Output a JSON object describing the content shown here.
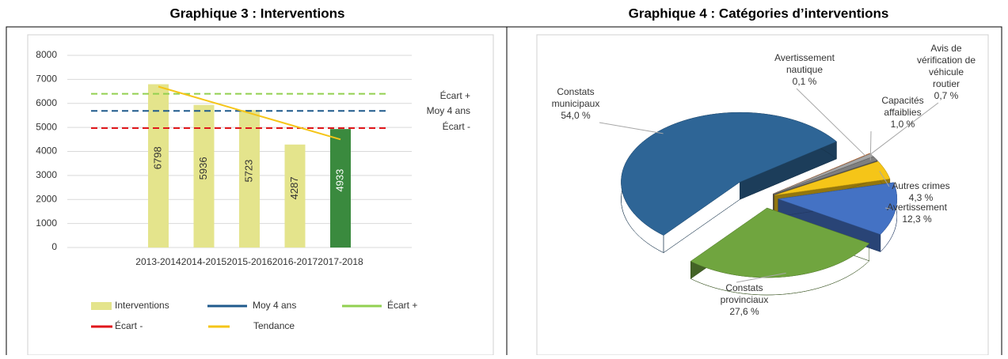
{
  "chart_data": [
    {
      "type": "bar",
      "title": "Graphique 3 : Interventions",
      "categories": [
        "2013-2014",
        "2014-2015",
        "2015-2016",
        "2016-2017",
        "2017-2018"
      ],
      "ylim": [
        0,
        8000
      ],
      "yticks": [
        0,
        1000,
        2000,
        3000,
        4000,
        5000,
        6000,
        7000,
        8000
      ],
      "grid": true,
      "series": [
        {
          "name": "Interventions",
          "type": "bar",
          "color": "#e4e48c",
          "colors": [
            "#e4e48c",
            "#e4e48c",
            "#e4e48c",
            "#e4e48c",
            "#3a8a3e"
          ],
          "values": [
            6798,
            5936,
            5723,
            4287,
            4933
          ]
        },
        {
          "name": "Moy 4 ans",
          "type": "line",
          "dash": true,
          "color": "#1f5a8c",
          "values": [
            5686,
            5686,
            5686,
            5686,
            5686
          ]
        },
        {
          "name": "Écart +",
          "type": "line",
          "dash": true,
          "color": "#92d050",
          "values": [
            6400,
            6400,
            6400,
            6400,
            6400
          ]
        },
        {
          "name": "Écart -",
          "type": "line",
          "dash": true,
          "color": "#e0161b",
          "values": [
            4970,
            4970,
            4970,
            4970,
            4970
          ]
        },
        {
          "name": "Tendance",
          "type": "line",
          "dash": false,
          "color": "#f5c518",
          "values": [
            6700,
            6150,
            5600,
            5050,
            4500
          ]
        }
      ]
    },
    {
      "type": "pie",
      "title": "Graphique 4 : Catégories d’interventions",
      "categories": [
        "Constats municipaux",
        "Avertissement nautique",
        "Avis de vérification de véhicule routier",
        "Capacités affaiblies",
        "Autres crimes",
        "Avertissement",
        "Constats provinciaux"
      ],
      "values": [
        54.0,
        0.1,
        0.7,
        1.0,
        4.3,
        12.3,
        27.6
      ],
      "value_labels": [
        "54,0 %",
        "0,1 %",
        "0,7 %",
        "1,0 %",
        "4,3 %",
        "12,3 %",
        "27,6 %"
      ],
      "colors": [
        "#2e6596",
        "#e07b39",
        "#a5a5a5",
        "#7f7f7f",
        "#f5c518",
        "#4472c4",
        "#70a53f"
      ]
    }
  ]
}
